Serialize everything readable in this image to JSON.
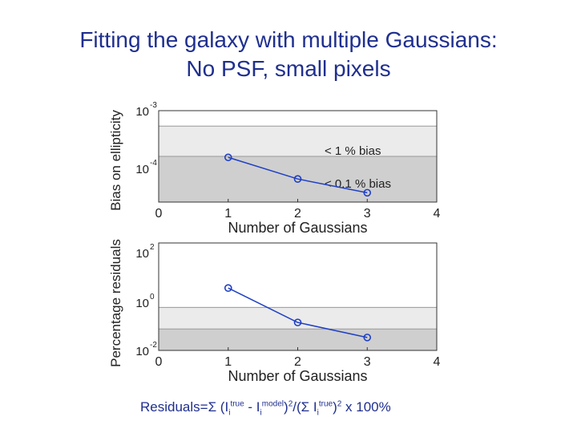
{
  "title": {
    "line1": "Fitting the galaxy with multiple Gaussians:",
    "line2": "No PSF, small pixels"
  },
  "chart_data": [
    {
      "type": "line",
      "ylabel": "Bias on ellipticity",
      "xlabel": "Number of Gaussians",
      "y_scale": "log",
      "x_ticks": [
        "0",
        "1",
        "2",
        "3",
        "4"
      ],
      "y_tick_labels": [
        {
          "base": "10",
          "exp": "-3"
        },
        {
          "base": "10",
          "exp": "-4"
        }
      ],
      "xlim": [
        0,
        4
      ],
      "ylim": [
        1e-05,
        0.001
      ],
      "bands": [
        {
          "label": "< 1 % bias",
          "from": 0.0001,
          "to": 0.00046,
          "color": "#ebebeb"
        },
        {
          "label": "< 0.1 % bias",
          "from": 1e-05,
          "to": 0.0001,
          "color": "#cfcfcf"
        }
      ],
      "series": [
        {
          "x": [
            1,
            2,
            3
          ],
          "y": [
            9.5e-05,
            3.2e-05,
            1.6e-05
          ],
          "color": "#1f3fc4"
        }
      ]
    },
    {
      "type": "line",
      "ylabel": "Percentage residuals",
      "xlabel": "Number of Gaussians",
      "y_scale": "log",
      "x_ticks": [
        "0",
        "1",
        "2",
        "3",
        "4"
      ],
      "y_tick_labels": [
        {
          "base": "10",
          "exp": "2"
        },
        {
          "base": "10",
          "exp": "0"
        },
        {
          "base": "10",
          "exp": "-2"
        }
      ],
      "xlim": [
        0,
        4
      ],
      "ylim": [
        0.01,
        1000
      ],
      "bands": [
        {
          "from": 0.1,
          "to": 1,
          "color": "#ebebeb"
        },
        {
          "from": 0.01,
          "to": 0.1,
          "color": "#cfcfcf"
        }
      ],
      "series": [
        {
          "x": [
            1,
            2,
            3
          ],
          "y": [
            8,
            0.2,
            0.04
          ],
          "color": "#1f3fc4"
        }
      ]
    }
  ],
  "formula": {
    "prefix": "Residuals=Σ (",
    "I1": "I",
    "i1": "i",
    "true1": "true",
    "minus": " - ",
    "I2": "I",
    "i2": "i",
    "model": "model",
    "close1": ")",
    "sq1": "2",
    "mid": "/(Σ ",
    "I3": "I",
    "i3": "i",
    "true2": "true",
    "close2": ")",
    "sq2": "2",
    "suffix": " x 100%"
  }
}
